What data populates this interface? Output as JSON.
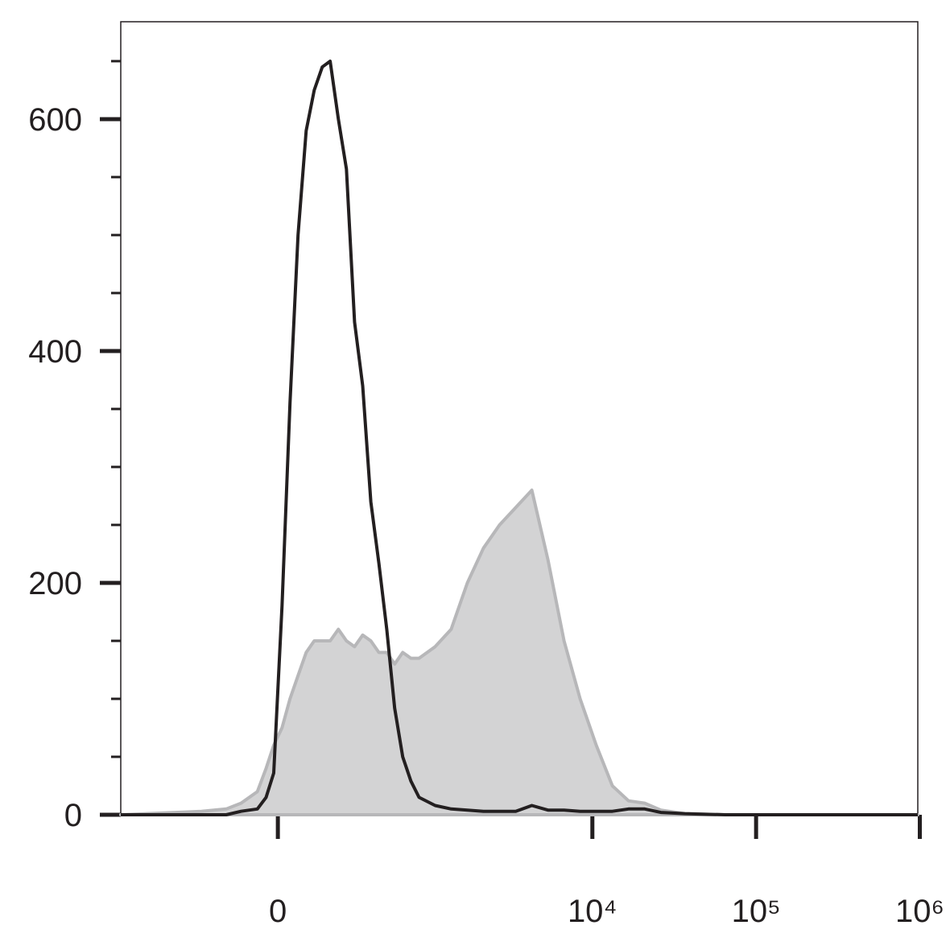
{
  "chart_data": {
    "type": "area_line",
    "x": [
      -1080,
      -310,
      -190,
      -130,
      -70,
      -40,
      -14,
      14,
      41,
      69,
      98,
      128,
      160,
      193,
      230,
      269,
      312,
      359,
      411,
      468,
      529,
      597,
      674,
      761,
      857,
      1083,
      1363,
      1716,
      2156,
      2707,
      3400,
      4265,
      5350,
      6713,
      8420,
      10560,
      13250,
      16630,
      20870,
      26190,
      36740,
      64800,
      201100,
      972000
    ],
    "series": [
      {
        "color": "#b7b7b9",
        "fill": "#d3d3d4",
        "values": [
          0,
          3,
          5,
          10,
          20,
          40,
          60,
          75,
          100,
          120,
          140,
          150,
          150,
          150,
          160,
          150,
          145,
          155,
          150,
          140,
          140,
          130,
          140,
          135,
          135,
          145,
          160,
          200,
          230,
          250,
          265,
          280,
          220,
          150,
          100,
          60,
          25,
          12,
          10,
          4,
          1,
          0,
          0,
          0
        ]
      },
      {
        "color": "#231f20",
        "values": [
          0,
          0,
          0,
          3,
          5,
          15,
          36,
          180,
          355,
          500,
          590,
          625,
          645,
          650,
          600,
          557,
          425,
          370,
          270,
          217,
          160,
          92,
          50,
          29,
          15,
          8,
          5,
          4,
          3,
          3,
          3,
          8,
          4,
          4,
          3,
          3,
          3,
          5,
          5,
          2,
          1,
          0,
          0,
          0
        ]
      }
    ],
    "xscale": "arcsinh",
    "xlim": [
      -1080,
      972000
    ],
    "xticks": [
      {
        "value": 0,
        "label": "0"
      },
      {
        "value": 10000,
        "label": "10⁴"
      },
      {
        "value": 100000,
        "label": "10⁵"
      },
      {
        "value": 1000000,
        "label": "10⁶"
      }
    ],
    "ylim": [
      0,
      684
    ],
    "yticks": [
      0,
      200,
      400,
      600
    ],
    "yminorticks": [
      50,
      100,
      150,
      250,
      300,
      350,
      450,
      500,
      550,
      650
    ]
  }
}
